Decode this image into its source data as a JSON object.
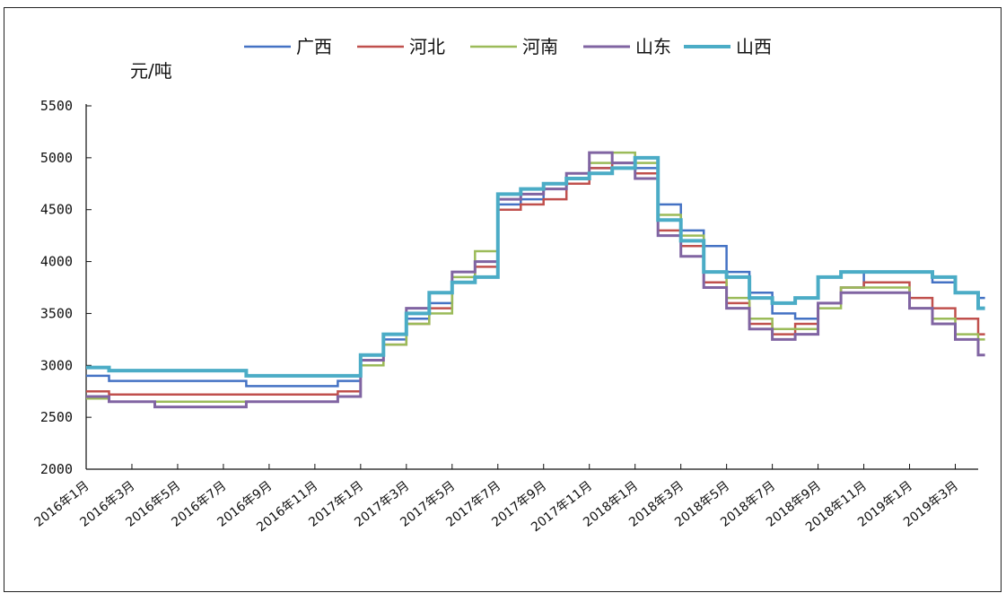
{
  "chart_data": {
    "type": "line",
    "unit": "元/吨",
    "ylim": [
      2000,
      5500
    ],
    "yticks": [
      2000,
      2500,
      3000,
      3500,
      4000,
      4500,
      5000,
      5500
    ],
    "x_labels": [
      "2016年1月",
      "2016年3月",
      "2016年5月",
      "2016年7月",
      "2016年9月",
      "2016年11月",
      "2017年1月",
      "2017年3月",
      "2017年5月",
      "2017年7月",
      "2017年9月",
      "2017年11月",
      "2018年1月",
      "2018年3月",
      "2018年5月",
      "2018年7月",
      "2018年9月",
      "2018年11月",
      "2019年1月",
      "2019年3月"
    ],
    "x_start": "2016-01",
    "x_end": "2019-04",
    "legend_position": "top",
    "series": [
      {
        "name": "广西",
        "color": "#4472C4",
        "width": 2.5,
        "points": [
          [
            "2016-01",
            2900
          ],
          [
            "2016-02",
            2850
          ],
          [
            "2016-08",
            2800
          ],
          [
            "2016-12",
            2850
          ],
          [
            "2017-01",
            3050
          ],
          [
            "2017-02",
            3250
          ],
          [
            "2017-03",
            3450
          ],
          [
            "2017-04",
            3600
          ],
          [
            "2017-05",
            3800
          ],
          [
            "2017-06",
            4000
          ],
          [
            "2017-07",
            4550
          ],
          [
            "2017-08",
            4600
          ],
          [
            "2017-09",
            4700
          ],
          [
            "2017-10",
            4800
          ],
          [
            "2017-11",
            4900
          ],
          [
            "2017-12",
            4950
          ],
          [
            "2018-01",
            4900
          ],
          [
            "2018-02",
            4550
          ],
          [
            "2018-03",
            4300
          ],
          [
            "2018-04",
            4150
          ],
          [
            "2018-05",
            3900
          ],
          [
            "2018-06",
            3700
          ],
          [
            "2018-07",
            3500
          ],
          [
            "2018-08",
            3450
          ],
          [
            "2018-09",
            3600
          ],
          [
            "2018-10",
            3750
          ],
          [
            "2018-11",
            3900
          ],
          [
            "2019-01",
            3900
          ],
          [
            "2019-02",
            3800
          ],
          [
            "2019-03",
            3700
          ],
          [
            "2019-04",
            3650
          ]
        ]
      },
      {
        "name": "河北",
        "color": "#C0504D",
        "width": 2.5,
        "points": [
          [
            "2016-01",
            2750
          ],
          [
            "2016-02",
            2720
          ],
          [
            "2016-08",
            2720
          ],
          [
            "2016-12",
            2750
          ],
          [
            "2017-01",
            3000
          ],
          [
            "2017-02",
            3200
          ],
          [
            "2017-03",
            3400
          ],
          [
            "2017-04",
            3550
          ],
          [
            "2017-05",
            3800
          ],
          [
            "2017-06",
            3950
          ],
          [
            "2017-07",
            4500
          ],
          [
            "2017-08",
            4550
          ],
          [
            "2017-09",
            4600
          ],
          [
            "2017-10",
            4750
          ],
          [
            "2017-11",
            4900
          ],
          [
            "2017-12",
            4950
          ],
          [
            "2018-01",
            4850
          ],
          [
            "2018-02",
            4300
          ],
          [
            "2018-03",
            4150
          ],
          [
            "2018-04",
            3800
          ],
          [
            "2018-05",
            3600
          ],
          [
            "2018-06",
            3400
          ],
          [
            "2018-07",
            3300
          ],
          [
            "2018-08",
            3400
          ],
          [
            "2018-09",
            3600
          ],
          [
            "2018-10",
            3750
          ],
          [
            "2018-11",
            3800
          ],
          [
            "2019-01",
            3650
          ],
          [
            "2019-02",
            3550
          ],
          [
            "2019-03",
            3450
          ],
          [
            "2019-04",
            3300
          ]
        ]
      },
      {
        "name": "河南",
        "color": "#9BBB59",
        "width": 2.5,
        "points": [
          [
            "2016-01",
            2680
          ],
          [
            "2016-02",
            2650
          ],
          [
            "2016-08",
            2650
          ],
          [
            "2016-12",
            2700
          ],
          [
            "2017-01",
            3000
          ],
          [
            "2017-02",
            3200
          ],
          [
            "2017-03",
            3400
          ],
          [
            "2017-04",
            3500
          ],
          [
            "2017-05",
            3850
          ],
          [
            "2017-06",
            4100
          ],
          [
            "2017-07",
            4600
          ],
          [
            "2017-08",
            4650
          ],
          [
            "2017-09",
            4700
          ],
          [
            "2017-10",
            4800
          ],
          [
            "2017-11",
            4950
          ],
          [
            "2017-12",
            5050
          ],
          [
            "2018-01",
            4950
          ],
          [
            "2018-02",
            4450
          ],
          [
            "2018-03",
            4250
          ],
          [
            "2018-04",
            3900
          ],
          [
            "2018-05",
            3650
          ],
          [
            "2018-06",
            3450
          ],
          [
            "2018-07",
            3350
          ],
          [
            "2018-08",
            3350
          ],
          [
            "2018-09",
            3550
          ],
          [
            "2018-10",
            3750
          ],
          [
            "2018-11",
            3750
          ],
          [
            "2019-01",
            3550
          ],
          [
            "2019-02",
            3450
          ],
          [
            "2019-03",
            3300
          ],
          [
            "2019-04",
            3250
          ]
        ]
      },
      {
        "name": "山东",
        "color": "#8064A2",
        "width": 3,
        "points": [
          [
            "2016-01",
            2700
          ],
          [
            "2016-02",
            2650
          ],
          [
            "2016-04",
            2600
          ],
          [
            "2016-08",
            2650
          ],
          [
            "2016-12",
            2700
          ],
          [
            "2017-01",
            3050
          ],
          [
            "2017-02",
            3300
          ],
          [
            "2017-03",
            3550
          ],
          [
            "2017-04",
            3700
          ],
          [
            "2017-05",
            3900
          ],
          [
            "2017-06",
            4000
          ],
          [
            "2017-07",
            4600
          ],
          [
            "2017-08",
            4650
          ],
          [
            "2017-09",
            4700
          ],
          [
            "2017-10",
            4850
          ],
          [
            "2017-11",
            5050
          ],
          [
            "2017-12",
            4950
          ],
          [
            "2018-01",
            4800
          ],
          [
            "2018-02",
            4250
          ],
          [
            "2018-03",
            4050
          ],
          [
            "2018-04",
            3750
          ],
          [
            "2018-05",
            3550
          ],
          [
            "2018-06",
            3350
          ],
          [
            "2018-07",
            3250
          ],
          [
            "2018-08",
            3300
          ],
          [
            "2018-09",
            3600
          ],
          [
            "2018-10",
            3700
          ],
          [
            "2018-11",
            3700
          ],
          [
            "2019-01",
            3550
          ],
          [
            "2019-02",
            3400
          ],
          [
            "2019-03",
            3250
          ],
          [
            "2019-04",
            3100
          ]
        ]
      },
      {
        "name": "山西",
        "color": "#4BACC6",
        "width": 4,
        "points": [
          [
            "2016-01",
            2980
          ],
          [
            "2016-02",
            2950
          ],
          [
            "2016-08",
            2900
          ],
          [
            "2016-12",
            2900
          ],
          [
            "2017-01",
            3100
          ],
          [
            "2017-02",
            3300
          ],
          [
            "2017-03",
            3500
          ],
          [
            "2017-04",
            3700
          ],
          [
            "2017-05",
            3800
          ],
          [
            "2017-06",
            3850
          ],
          [
            "2017-07",
            4650
          ],
          [
            "2017-08",
            4700
          ],
          [
            "2017-09",
            4750
          ],
          [
            "2017-10",
            4800
          ],
          [
            "2017-11",
            4850
          ],
          [
            "2017-12",
            4900
          ],
          [
            "2018-01",
            5000
          ],
          [
            "2018-02",
            4400
          ],
          [
            "2018-03",
            4200
          ],
          [
            "2018-04",
            3900
          ],
          [
            "2018-05",
            3850
          ],
          [
            "2018-06",
            3650
          ],
          [
            "2018-07",
            3600
          ],
          [
            "2018-08",
            3650
          ],
          [
            "2018-09",
            3850
          ],
          [
            "2018-10",
            3900
          ],
          [
            "2018-11",
            3900
          ],
          [
            "2019-01",
            3900
          ],
          [
            "2019-02",
            3850
          ],
          [
            "2019-03",
            3700
          ],
          [
            "2019-04",
            3550
          ]
        ]
      }
    ]
  }
}
